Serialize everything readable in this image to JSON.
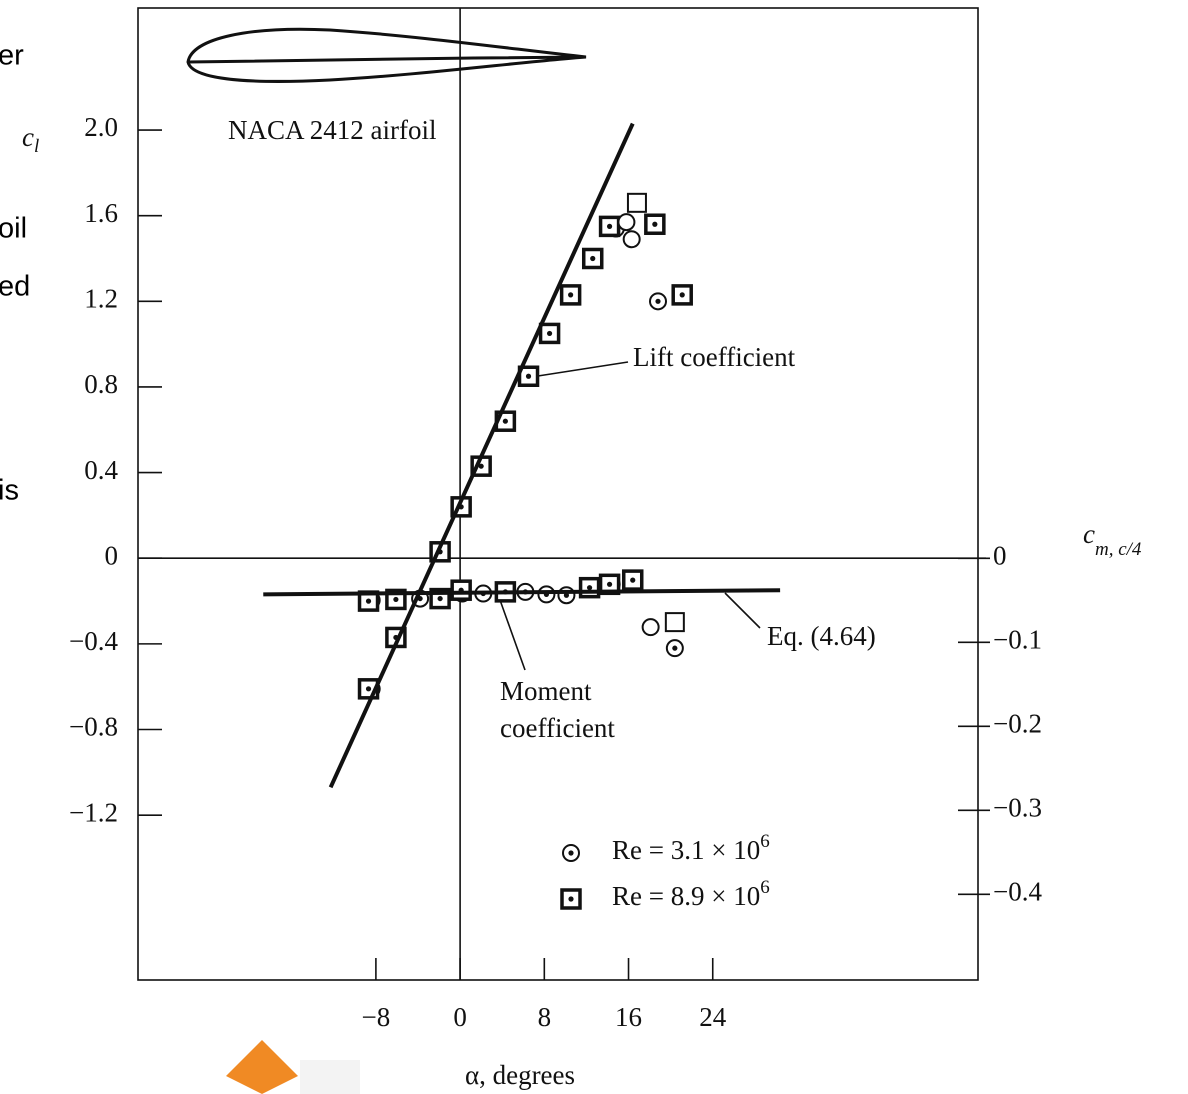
{
  "cropped_text": [
    "er",
    "oil",
    "ed",
    "is"
  ],
  "chart_data": {
    "type": "scatter",
    "y_label": {
      "main": "c",
      "sub": "l"
    },
    "y2_label": {
      "main": "c",
      "sub": "m, c/4"
    },
    "x_label": "α, degrees",
    "annotations": {
      "airfoil": "NACA 2412 airfoil",
      "lift": "Lift coefficient",
      "moment": [
        "Moment",
        "coefficient"
      ],
      "equation": "Eq. (4.64)"
    },
    "xlim": [
      -30.6,
      49.2
    ],
    "xticks": [
      {
        "value": -8,
        "label": "−8"
      },
      0,
      8,
      16,
      24
    ],
    "ylim": [
      -1.97,
      2.57
    ],
    "yticks": [
      {
        "value": 2,
        "label": "2.0"
      },
      1.6,
      1.2,
      0.8,
      0.4,
      0,
      {
        "value": -0.4,
        "label": "−0.4"
      },
      {
        "value": -0.8,
        "label": "−0.8"
      },
      {
        "value": -1.2,
        "label": "−1.2"
      }
    ],
    "y2lim": [
      -0.502,
      0.655
    ],
    "y2ticks": [
      0,
      {
        "value": -0.1,
        "label": "−0.1"
      },
      {
        "value": -0.2,
        "label": "−0.2"
      },
      {
        "value": -0.3,
        "label": "−0.3"
      },
      {
        "value": -0.4,
        "label": "−0.4"
      }
    ],
    "zero_lines": true,
    "series": [
      {
        "name": "Re = 3.1 × 10",
        "name_sup": "6",
        "marker": "circle-dot",
        "color": "#111",
        "x": [
          -8.4,
          -6,
          -2,
          0.1,
          2,
          4.3,
          6.5,
          8.5,
          10.5,
          14.8,
          18.8
        ],
        "values": [
          -0.61,
          -0.37,
          0.03,
          0.24,
          0.43,
          0.64,
          0.85,
          1.05,
          1.23,
          1.54,
          1.2
        ]
      },
      {
        "name": "Re = 8.9 × 10",
        "name_sup": "6",
        "marker": "square-dot",
        "color": "#111",
        "x": [
          -8.7,
          -6.1,
          -1.9,
          0.1,
          2,
          4.3,
          6.5,
          8.5,
          10.5,
          12.6,
          14.2,
          18.5,
          21.1
        ],
        "values": [
          -0.61,
          -0.37,
          0.03,
          0.24,
          0.43,
          0.64,
          0.85,
          1.05,
          1.23,
          1.4,
          1.55,
          1.56,
          1.23
        ]
      },
      {
        "marker": "circle-dot",
        "color": "#111",
        "axis": "y2",
        "x": [
          -8.4,
          -6,
          -3.8,
          -1.8,
          0.2,
          2.2,
          4.2,
          6.2,
          8.2,
          10.1,
          12.4,
          14.4,
          16.4,
          20.4
        ],
        "values": [
          -0.05,
          -0.048,
          -0.048,
          -0.048,
          -0.042,
          -0.042,
          -0.04,
          -0.04,
          -0.043,
          -0.044,
          -0.035,
          -0.031,
          -0.026,
          -0.107
        ]
      },
      {
        "marker": "square-dot",
        "color": "#111",
        "axis": "y2",
        "x": [
          -8.7,
          -6.1,
          -1.9,
          0.1,
          4.3,
          12.3,
          14.2,
          16.4
        ],
        "values": [
          -0.051,
          -0.049,
          -0.048,
          -0.038,
          -0.04,
          -0.035,
          -0.031,
          -0.026
        ]
      },
      {
        "marker": "circle",
        "color": "#111",
        "x": [
          15.8,
          16.3
        ],
        "values": [
          1.57,
          1.49
        ]
      },
      {
        "marker": "square",
        "color": "#111",
        "x": [
          16.8
        ],
        "values": [
          1.66
        ]
      },
      {
        "marker": "circle",
        "color": "#111",
        "axis": "y2",
        "x": [
          18.1
        ],
        "values": [
          -0.082
        ]
      },
      {
        "marker": "square",
        "color": "#111",
        "axis": "y2",
        "x": [
          20.4
        ],
        "values": [
          -0.076
        ]
      },
      {
        "marker": "line",
        "color": "#111",
        "x": [
          -12.3,
          16.4
        ],
        "values": [
          -1.07,
          2.03
        ]
      },
      {
        "marker": "line",
        "color": "#111",
        "axis": "y2",
        "x": [
          -18.7,
          30.4
        ],
        "values": [
          -0.043,
          -0.038
        ]
      }
    ]
  }
}
